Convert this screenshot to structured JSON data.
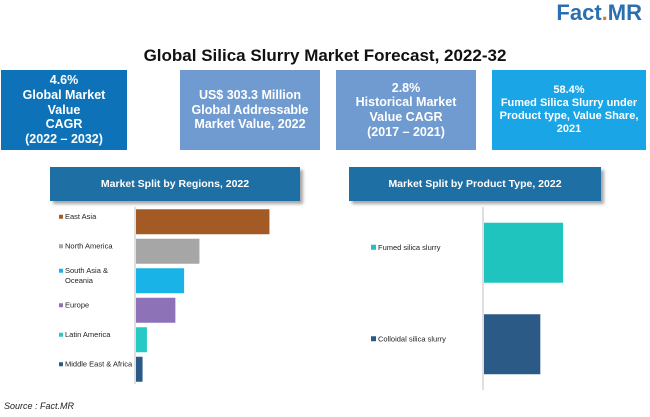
{
  "logo": {
    "part1": "Fact",
    "dot": ".",
    "part2": "MR"
  },
  "title": "Global Silica Slurry Market Forecast, 2022-32",
  "kpis": [
    {
      "lines": [
        "4.6%",
        "Global Market Value",
        "CAGR",
        "(2022 – 2032)"
      ]
    },
    {
      "lines": [
        "US$ 303.3 Million",
        "Global Addressable",
        "Market Value, 2022"
      ]
    },
    {
      "lines": [
        "2.8%",
        "Historical Market",
        "Value CAGR",
        "(2017 – 2021)"
      ]
    },
    {
      "lines": [
        "58.4%",
        "Fumed Silica Slurry under",
        "Product type, Value Share,",
        "2021"
      ]
    }
  ],
  "colors": {
    "kpi1": "#0e72b8",
    "kpi2": "#6f9bd0",
    "kpi3": "#6f9bd0",
    "kpi4": "#1aa5e6",
    "panel_header": "#1d6fa4"
  },
  "source": "Source : Fact.MR",
  "chart_data": [
    {
      "type": "bar",
      "orientation": "horizontal",
      "title": "Market Split by Regions, 2022",
      "categories": [
        "East Asia",
        "North America",
        "South Asia & Oceania",
        "Europe",
        "Latin America",
        "Middle East & Africa"
      ],
      "category_lines": [
        [
          "East Asia"
        ],
        [
          "North America"
        ],
        [
          "South Asia &",
          "Oceania"
        ],
        [
          "Europe"
        ],
        [
          "Latin America"
        ],
        [
          "Middle East & Africa"
        ]
      ],
      "values": [
        30.5,
        14.5,
        11,
        9,
        2.5,
        1.5
      ],
      "colors": [
        "#a35a24",
        "#a6a6a6",
        "#1ab3e8",
        "#8e72b8",
        "#27c9c4",
        "#2b5a86"
      ],
      "xlim": [
        0,
        32
      ],
      "grid": false,
      "legend": "left-markers"
    },
    {
      "type": "bar",
      "orientation": "horizontal",
      "title": "Market Split by Product Type, 2022",
      "categories": [
        "Fumed silica slurry",
        "Colloidal silica slurry"
      ],
      "category_lines": [
        [
          "Fumed silica slurry"
        ],
        [
          "Colloidal silica slurry"
        ]
      ],
      "values": [
        58.4,
        41.6
      ],
      "colors": [
        "#1fc4bf",
        "#2b5a86"
      ],
      "xlim": [
        0,
        65
      ],
      "grid": false,
      "legend": "left-markers"
    }
  ]
}
